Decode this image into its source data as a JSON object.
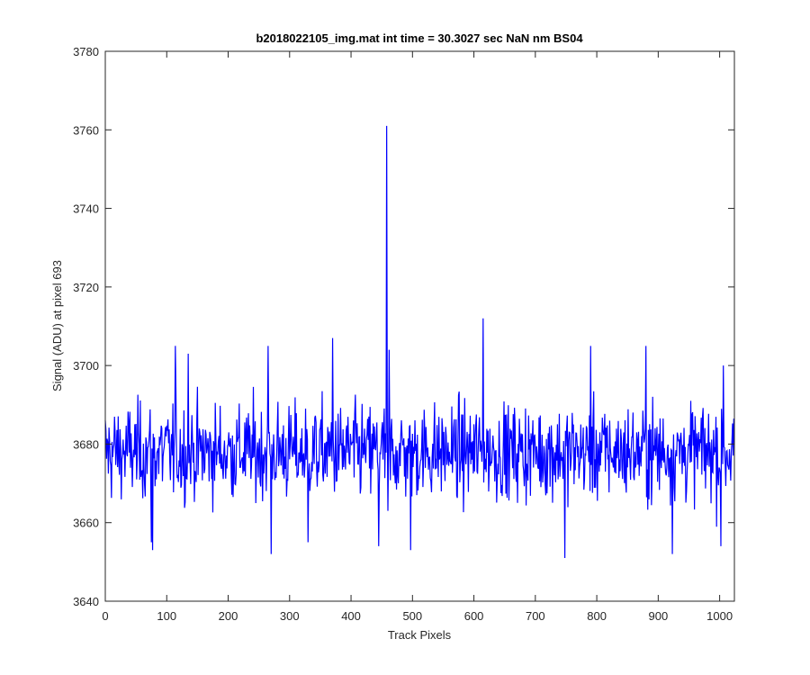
{
  "chart_data": {
    "type": "line",
    "title": "b2018022105_img.mat int time = 30.3027 sec  NaN nm BS04",
    "xlabel": "Track Pixels",
    "ylabel": "Signal (ADU) at pixel 693",
    "xlim": [
      0,
      1024
    ],
    "ylim": [
      3640,
      3780
    ],
    "xticks": [
      0,
      100,
      200,
      300,
      400,
      500,
      600,
      700,
      800,
      900,
      1000
    ],
    "xtick_labels": [
      "0",
      "100",
      "200",
      "300",
      "400",
      "500",
      "600",
      "700",
      "800",
      "900",
      "1000"
    ],
    "yticks": [
      3640,
      3660,
      3680,
      3700,
      3720,
      3740,
      3760,
      3780
    ],
    "ytick_labels": [
      "3640",
      "3660",
      "3680",
      "3700",
      "3720",
      "3740",
      "3760",
      "3780"
    ],
    "grid": false,
    "line_color": "#0000ff",
    "series_summary": {
      "points": 1024,
      "baseline_mean": 3678,
      "noise_low": 3651,
      "noise_high": 3707
    },
    "notable_points": [
      {
        "x": 75,
        "y": 3655
      },
      {
        "x": 77,
        "y": 3653
      },
      {
        "x": 114,
        "y": 3705
      },
      {
        "x": 135,
        "y": 3703
      },
      {
        "x": 270,
        "y": 3652
      },
      {
        "x": 265,
        "y": 3705
      },
      {
        "x": 330,
        "y": 3655
      },
      {
        "x": 370,
        "y": 3707
      },
      {
        "x": 445,
        "y": 3654
      },
      {
        "x": 458,
        "y": 3761
      },
      {
        "x": 460,
        "y": 3663
      },
      {
        "x": 462,
        "y": 3704
      },
      {
        "x": 497,
        "y": 3653
      },
      {
        "x": 615,
        "y": 3712
      },
      {
        "x": 748,
        "y": 3651
      },
      {
        "x": 790,
        "y": 3705
      },
      {
        "x": 880,
        "y": 3705
      },
      {
        "x": 923,
        "y": 3652
      },
      {
        "x": 1002,
        "y": 3654
      },
      {
        "x": 1006,
        "y": 3700
      }
    ]
  }
}
